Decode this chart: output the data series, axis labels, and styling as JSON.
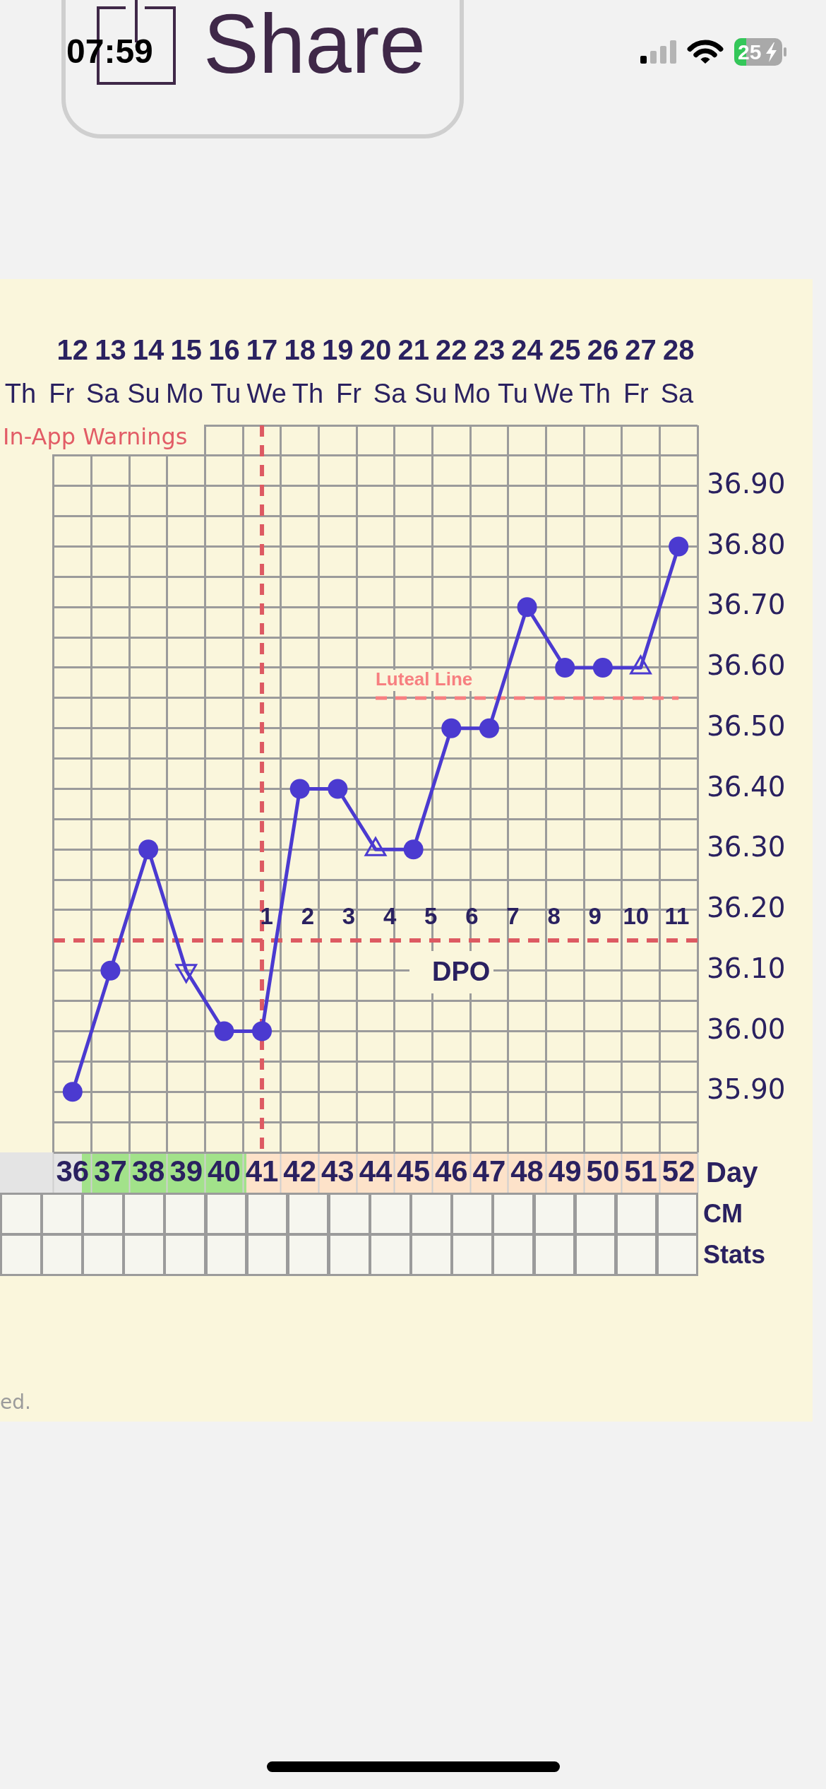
{
  "chart_data": {
    "type": "line",
    "categories": [
      "36",
      "37",
      "38",
      "39",
      "40",
      "41",
      "42",
      "43",
      "44",
      "45",
      "46",
      "47",
      "48",
      "49",
      "50",
      "51",
      "52"
    ],
    "xlabel": "Day",
    "x2lim": [
      11.5,
      28.5
    ],
    "x2ticks": [
      12,
      13,
      14,
      15,
      16,
      17,
      18,
      19,
      20,
      21,
      22,
      23,
      24,
      25,
      26,
      27,
      28
    ],
    "ylim": [
      35.8,
      37.0
    ],
    "yticks": [
      {
        "value": 35.8,
        "label": null
      },
      {
        "value": 35.85,
        "label": null
      },
      {
        "value": 35.9,
        "label": "35.90"
      },
      {
        "value": 35.95,
        "label": null
      },
      {
        "value": 36.0,
        "label": "36.00"
      },
      {
        "value": 36.05,
        "label": null
      },
      {
        "value": 36.1,
        "label": "36.10"
      },
      {
        "value": 36.2,
        "label": "36.20"
      },
      {
        "value": 36.25,
        "label": null
      },
      {
        "value": 36.3,
        "label": "36.30"
      },
      {
        "value": 36.35,
        "label": null
      },
      {
        "value": 36.4,
        "label": "36.40"
      },
      {
        "value": 36.45,
        "label": null
      },
      {
        "value": 36.5,
        "label": "36.50"
      },
      {
        "value": 36.55,
        "label": null
      },
      {
        "value": 36.6,
        "label": "36.60"
      },
      {
        "value": 36.65,
        "label": null
      },
      {
        "value": 36.7,
        "label": "36.70"
      },
      {
        "value": 36.75,
        "label": null
      },
      {
        "value": 36.8,
        "label": "36.80"
      },
      {
        "value": 36.85,
        "label": null
      },
      {
        "value": 36.9,
        "label": "36.90"
      },
      {
        "value": 36.95,
        "label": null
      },
      {
        "value": 37.0,
        "label": null
      }
    ],
    "grid": true,
    "series": [
      {
        "color": "#4b3ad0",
        "marker": "none",
        "values": [
          35.9,
          36.1,
          36.3,
          36.1,
          36.0,
          36.0,
          36.4,
          36.4,
          36.3,
          36.3,
          36.5,
          36.5,
          36.7,
          36.6,
          36.6,
          36.6,
          36.8
        ]
      },
      {
        "type": "scatter",
        "color": "#4b3ad0",
        "marker": "circle",
        "x": [
          "36",
          "37",
          "38",
          "40",
          "41",
          "42",
          "43",
          "45",
          "46",
          "47",
          "48",
          "49",
          "50",
          "52"
        ],
        "values": [
          35.9,
          36.1,
          36.3,
          36.0,
          36.0,
          36.4,
          36.4,
          36.3,
          36.5,
          36.5,
          36.7,
          36.6,
          36.6,
          36.8
        ]
      },
      {
        "type": "scatter",
        "color": "#4b3ad0",
        "marker": "triangle",
        "x": [
          "44",
          "51"
        ],
        "values": [
          36.3,
          36.6
        ]
      },
      {
        "type": "scatter",
        "color": "#4b3ad0",
        "marker": "triangle-down",
        "x": [
          "39"
        ],
        "values": [
          36.1
        ]
      },
      {
        "name": "Luteal Line",
        "color": "#f77f80",
        "line_style": "dashed",
        "marker": "none",
        "values": [
          null,
          null,
          null,
          null,
          null,
          null,
          null,
          null,
          36.55,
          36.55,
          36.55,
          36.55,
          36.55,
          36.55,
          36.55,
          36.55,
          36.55
        ]
      }
    ],
    "ref_lines": [
      {
        "axis": "y",
        "value": 36.15,
        "color": "#dd5a62",
        "line_style": "dashed"
      },
      {
        "axis": "x",
        "value": "41",
        "color": "#dd5a62",
        "line_style": "dashed"
      }
    ],
    "annotations": [
      "07:59",
      "Share",
      "25",
      "Th",
      "Fr",
      "Sa",
      "Su",
      "Mo",
      "Tu",
      "We",
      "Th",
      "Fr",
      "Sa",
      "Su",
      "Mo",
      "Tu",
      "We",
      "Th",
      "Fr",
      "Sa",
      "In-App Warnings",
      "1",
      "2",
      "3",
      "4",
      "5",
      "6",
      "7",
      "8",
      "9",
      "10",
      "11",
      "DPO",
      "CM",
      "Stats",
      "ed."
    ]
  }
}
